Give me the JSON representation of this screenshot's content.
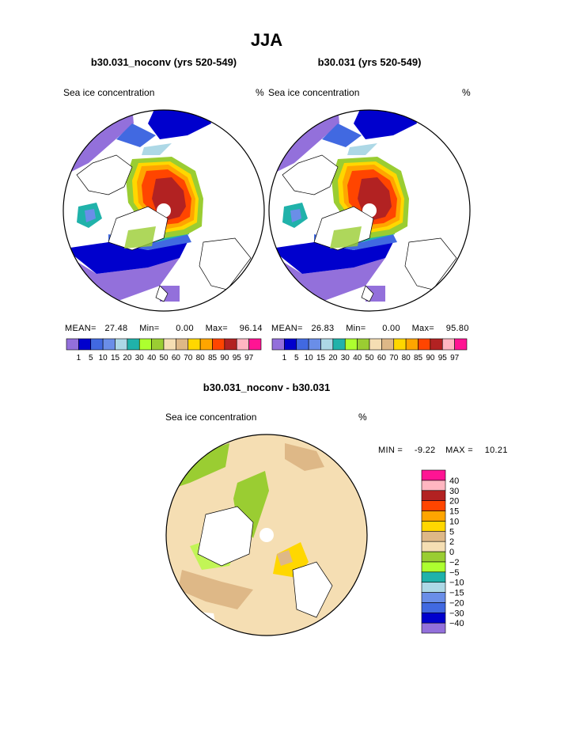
{
  "page_title": "JJA",
  "panels": [
    {
      "title": "b30.031_noconv (yrs 520-549)",
      "left_label": "Sea ice concentration",
      "right_label": "%",
      "mean_label": "MEAN=",
      "mean": "27.48",
      "min_label": "Min=",
      "min": "0.00",
      "max_label": "Max=",
      "max": "96.14"
    },
    {
      "title": "b30.031 (yrs 520-549)",
      "left_label": "Sea ice concentration",
      "right_label": "%",
      "mean_label": "MEAN=",
      "mean": "26.83",
      "min_label": "Min=",
      "min": "0.00",
      "max_label": "Max=",
      "max": "95.80"
    }
  ],
  "diff_panel": {
    "title": "b30.031_noconv - b30.031",
    "left_label": "Sea ice concentration",
    "right_label": "%",
    "min_label": "MIN =",
    "min": "-9.22",
    "max_label": "MAX =",
    "max": "10.21"
  },
  "chart_data": [
    {
      "type": "contour_map",
      "title": "b30.031_noconv (yrs 520-549)",
      "variable": "Sea ice concentration",
      "units": "%",
      "projection": "north polar stereographic",
      "levels": [
        1,
        5,
        10,
        15,
        20,
        30,
        40,
        50,
        60,
        70,
        80,
        85,
        90,
        95,
        97
      ],
      "colors": [
        "#9370db",
        "#0000cd",
        "#4169e1",
        "#6a8ee8",
        "#add8e6",
        "#20b2aa",
        "#adff2f",
        "#9acd32",
        "#f5deb3",
        "#deb887",
        "#ffd700",
        "#ffa500",
        "#ff4500",
        "#b22222",
        "#ffb6c1",
        "#ff1493"
      ],
      "stats": {
        "mean": 27.48,
        "min": 0.0,
        "max": 96.14
      }
    },
    {
      "type": "contour_map",
      "title": "b30.031 (yrs 520-549)",
      "variable": "Sea ice concentration",
      "units": "%",
      "projection": "north polar stereographic",
      "levels": [
        1,
        5,
        10,
        15,
        20,
        30,
        40,
        50,
        60,
        70,
        80,
        85,
        90,
        95,
        97
      ],
      "colors": [
        "#9370db",
        "#0000cd",
        "#4169e1",
        "#6a8ee8",
        "#add8e6",
        "#20b2aa",
        "#adff2f",
        "#9acd32",
        "#f5deb3",
        "#deb887",
        "#ffd700",
        "#ffa500",
        "#ff4500",
        "#b22222",
        "#ffb6c1",
        "#ff1493"
      ],
      "stats": {
        "mean": 26.83,
        "min": 0.0,
        "max": 95.8
      }
    },
    {
      "type": "contour_map",
      "title": "b30.031_noconv - b30.031",
      "variable": "Sea ice concentration",
      "units": "%",
      "projection": "north polar stereographic",
      "levels": [
        -40,
        -30,
        -20,
        -15,
        -10,
        -5,
        -2,
        0,
        2,
        5,
        10,
        15,
        20,
        30,
        40
      ],
      "level_labels": [
        "−40",
        "−30",
        "−20",
        "−15",
        "−10",
        "−5",
        "−2",
        "0",
        "2",
        "5",
        "10",
        "15",
        "20",
        "30",
        "40"
      ],
      "colors": [
        "#9370db",
        "#0000cd",
        "#4169e1",
        "#6a8ee8",
        "#add8e6",
        "#20b2aa",
        "#adff2f",
        "#9acd32",
        "#f5deb3",
        "#deb887",
        "#ffd700",
        "#ffa500",
        "#ff4500",
        "#b22222",
        "#ffb6c1",
        "#ff1493"
      ],
      "stats": {
        "min": -9.22,
        "max": 10.21
      }
    }
  ]
}
